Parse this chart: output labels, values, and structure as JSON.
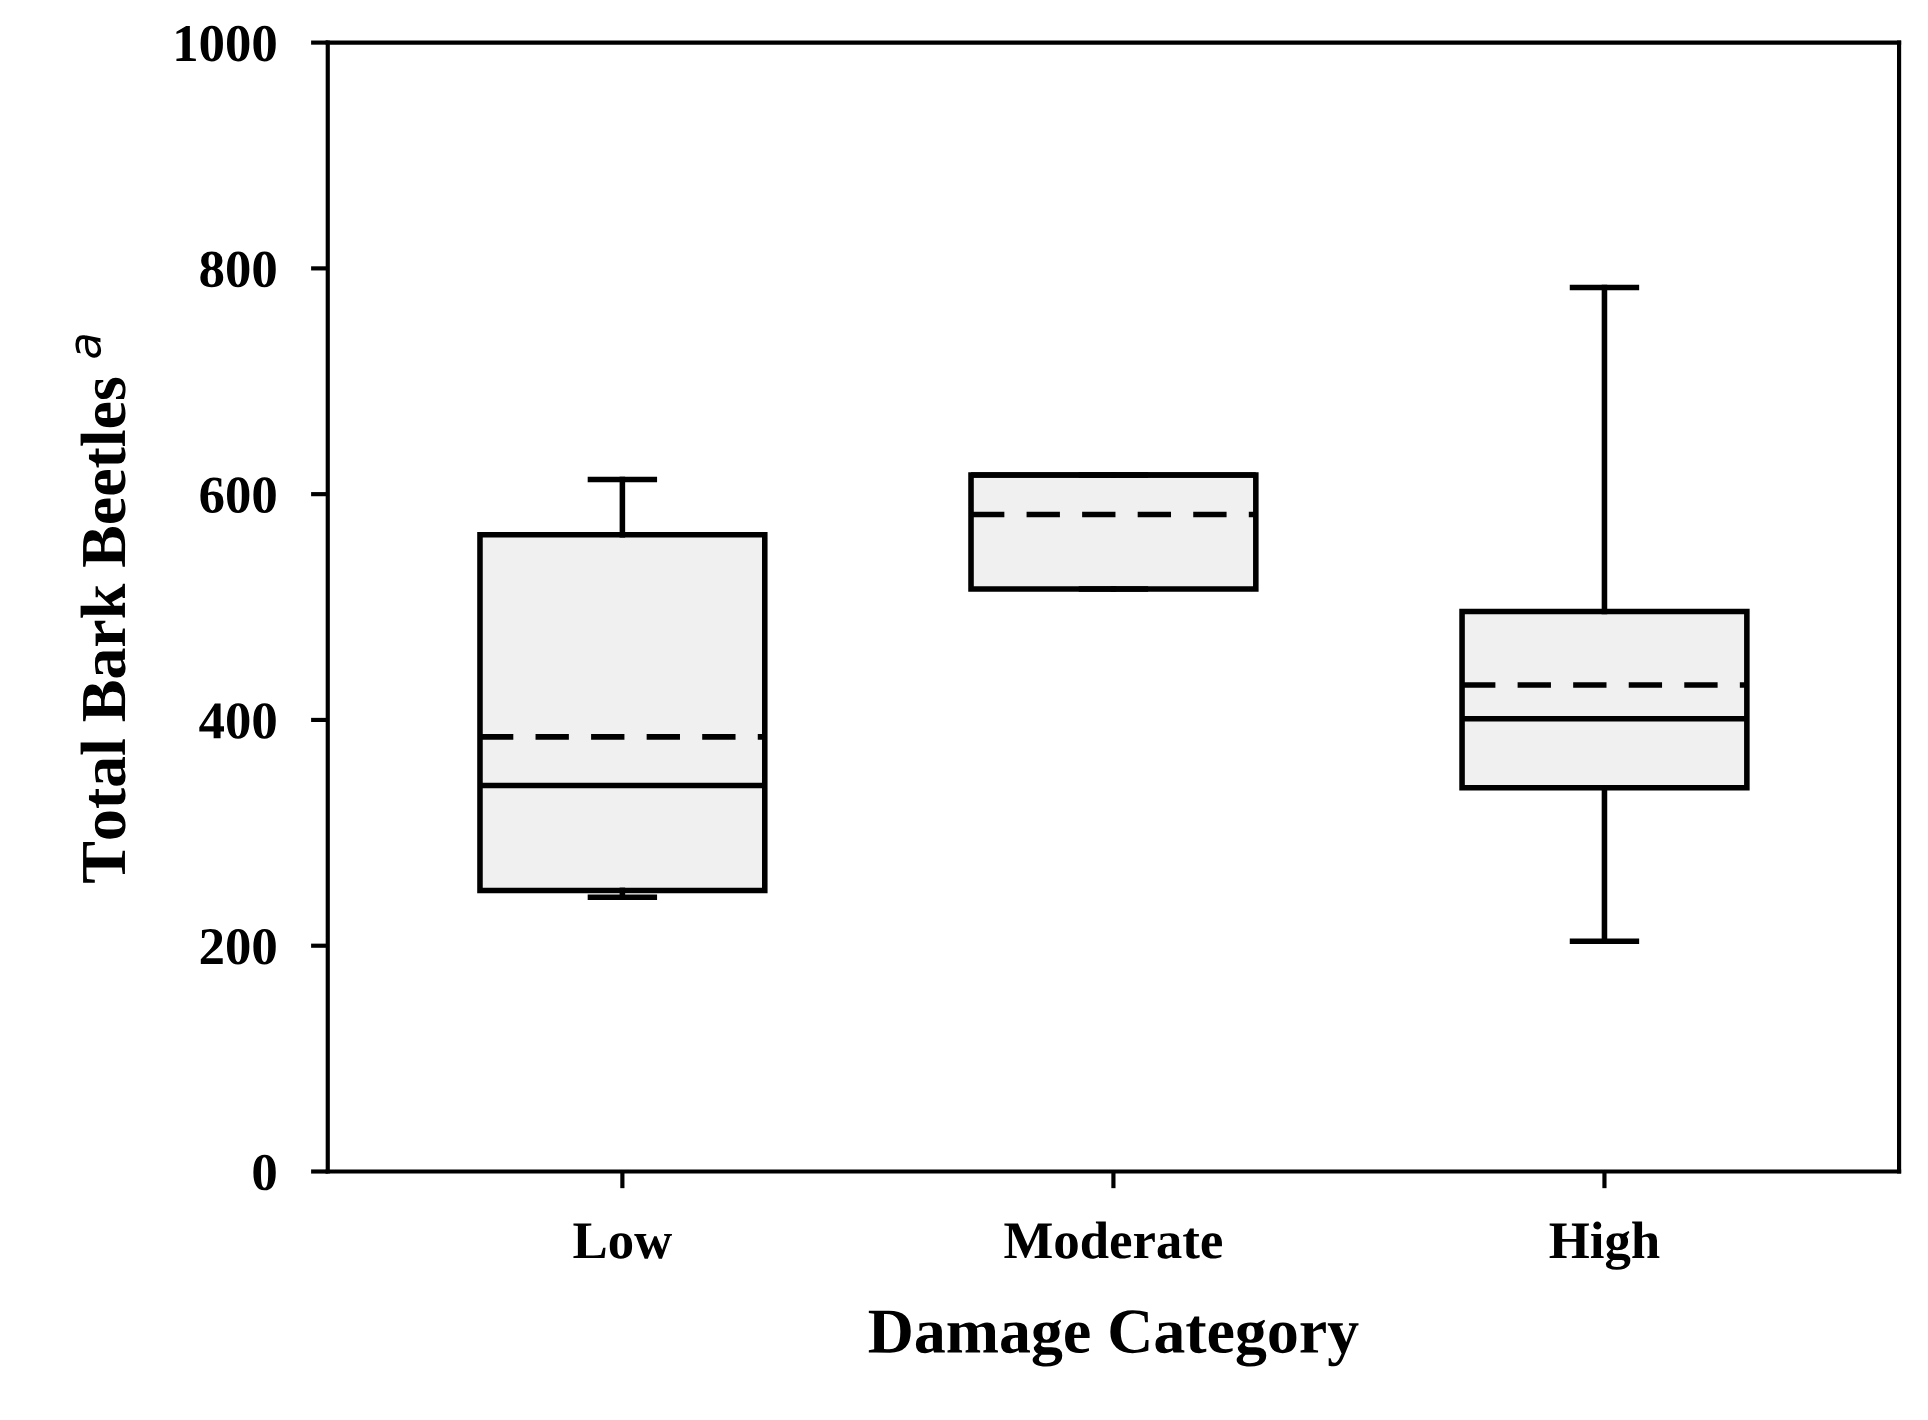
{
  "chart_data": {
    "type": "box",
    "xlabel": "Damage Category",
    "ylabel": "Total Bark Beetles $^{a}$",
    "categories": [
      "Low",
      "Moderate",
      "High"
    ],
    "boxes": [
      {
        "low": 243,
        "q1": 249,
        "median": 342,
        "q3": 564,
        "high": 613,
        "mean": 385
      },
      {
        "low": 516,
        "q1": 516,
        "median": 617,
        "q3": 617,
        "high": 617,
        "mean": 582
      },
      {
        "low": 204,
        "q1": 340,
        "median": 401,
        "q3": 496,
        "high": 783,
        "mean": 431
      }
    ],
    "color": "#f0f0f0",
    "ylim": [
      0,
      1000
    ],
    "yticks": [
      0,
      200,
      400,
      600,
      800,
      1000
    ],
    "grid": false
  }
}
